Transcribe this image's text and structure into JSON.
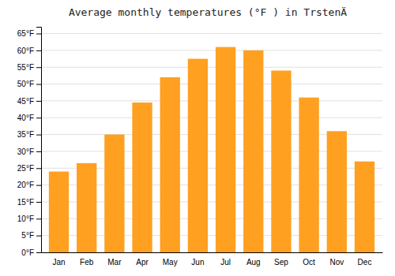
{
  "chart_data": {
    "type": "bar",
    "title": "Average monthly temperatures (°F ) in TrstenÄ",
    "categories": [
      "Jan",
      "Feb",
      "Mar",
      "Apr",
      "May",
      "Jun",
      "Jul",
      "Aug",
      "Sep",
      "Oct",
      "Nov",
      "Dec"
    ],
    "values": [
      24,
      26.5,
      35,
      44.5,
      52,
      57.5,
      61,
      60,
      54,
      46,
      36,
      27
    ],
    "color": "#FFA020",
    "ylim": [
      0,
      67
    ],
    "yticks": [
      {
        "value": 0,
        "label": "0°F"
      },
      {
        "value": 5,
        "label": "5°F"
      },
      {
        "value": 10,
        "label": "10°F"
      },
      {
        "value": 15,
        "label": "15°F"
      },
      {
        "value": 20,
        "label": "20°F"
      },
      {
        "value": 25,
        "label": "25°F"
      },
      {
        "value": 30,
        "label": "30°F"
      },
      {
        "value": 35,
        "label": "35°F"
      },
      {
        "value": 40,
        "label": "40°F"
      },
      {
        "value": 45,
        "label": "45°F"
      },
      {
        "value": 50,
        "label": "50°F"
      },
      {
        "value": 55,
        "label": "55°F"
      },
      {
        "value": 60,
        "label": "60°F"
      },
      {
        "value": 65,
        "label": "65°F"
      }
    ],
    "grid": true
  }
}
